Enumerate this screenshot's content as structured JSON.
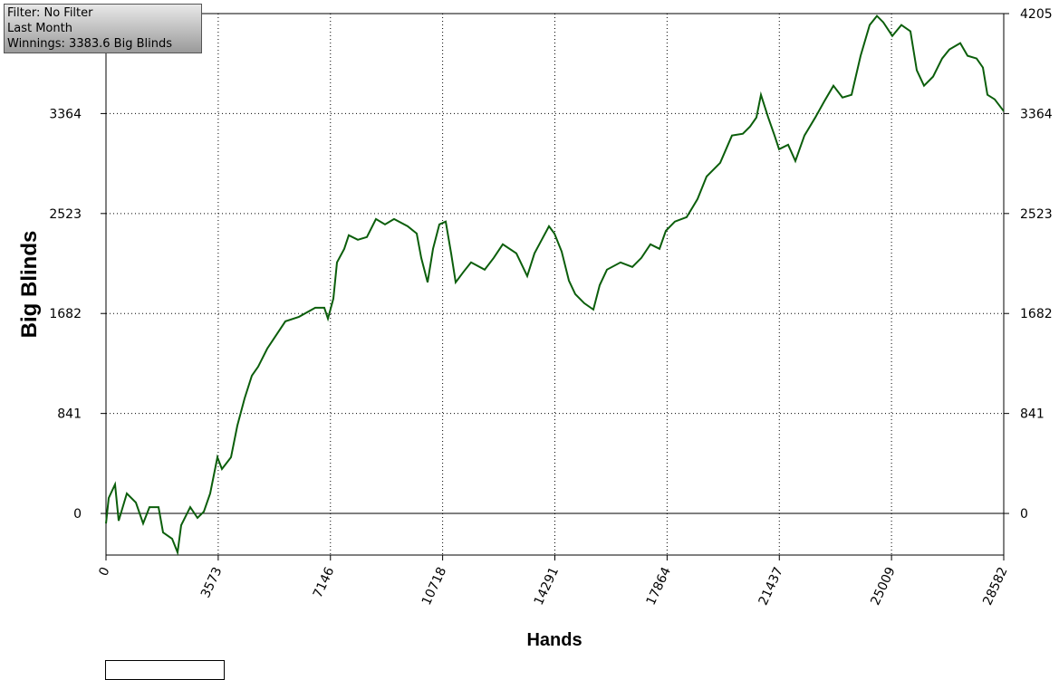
{
  "chart_data": {
    "type": "line",
    "info": [
      "Filter: No Filter",
      "Last Month",
      "Winnings: 3383.6 Big Blinds"
    ],
    "y_label": "Big Blinds",
    "x_label": "Hands",
    "xlim": [
      0,
      28582
    ],
    "xticks": [
      0,
      3573,
      7146,
      10718,
      14291,
      17864,
      21437,
      25009,
      28582
    ],
    "ylim": [
      -350,
      4205
    ],
    "yticks": [
      0,
      841,
      1682,
      2523,
      3364,
      4205
    ],
    "grid": true,
    "series": [
      {
        "name": "Winnings",
        "color": "#0b5e0b",
        "x": [
          0,
          87,
          288,
          404,
          663,
          952,
          1182,
          1384,
          1673,
          1817,
          2105,
          2278,
          2394,
          2682,
          2913,
          3115,
          3317,
          3548,
          3692,
          3980,
          4182,
          4413,
          4643,
          4845,
          5134,
          5422,
          5710,
          6143,
          6662,
          6951,
          7066,
          7239,
          7355,
          7585,
          7730,
          8018,
          8306,
          8595,
          8883,
          9172,
          9604,
          9893,
          10037,
          10239,
          10412,
          10614,
          10816,
          10989,
          11133,
          11393,
          11624,
          12056,
          12345,
          12633,
          13066,
          13412,
          13643,
          13874,
          14104,
          14277,
          14508,
          14739,
          14941,
          15229,
          15517,
          15719,
          15950,
          16382,
          16757,
          17045,
          17334,
          17622,
          17824,
          18112,
          18487,
          18833,
          19121,
          19554,
          19929,
          20275,
          20506,
          20708,
          20852,
          21083,
          21285,
          21430,
          21718,
          21949,
          22237,
          22583,
          22872,
          23160,
          23449,
          23737,
          24026,
          24314,
          24545,
          24747,
          25035,
          25323,
          25612,
          25814,
          26045,
          26333,
          26622,
          26852,
          27199,
          27430,
          27718,
          27920,
          28064,
          28295,
          28582
        ],
        "values": [
          -84,
          130,
          244,
          -61,
          168,
          91,
          -84,
          53,
          53,
          -160,
          -213,
          -328,
          -99,
          53,
          -38,
          15,
          168,
          473,
          374,
          473,
          739,
          968,
          1159,
          1235,
          1387,
          1502,
          1616,
          1654,
          1730,
          1730,
          1639,
          1807,
          2112,
          2226,
          2340,
          2302,
          2325,
          2477,
          2432,
          2477,
          2416,
          2355,
          2150,
          1944,
          2226,
          2432,
          2455,
          2188,
          1944,
          2036,
          2112,
          2051,
          2150,
          2264,
          2188,
          1997,
          2188,
          2302,
          2416,
          2355,
          2203,
          1959,
          1845,
          1768,
          1715,
          1921,
          2051,
          2112,
          2074,
          2150,
          2264,
          2226,
          2378,
          2455,
          2493,
          2645,
          2835,
          2950,
          3179,
          3194,
          3255,
          3331,
          3522,
          3331,
          3179,
          3064,
          3102,
          2965,
          3179,
          3331,
          3468,
          3598,
          3499,
          3522,
          3850,
          4109,
          4185,
          4132,
          4017,
          4109,
          4056,
          3728,
          3598,
          3675,
          3827,
          3903,
          3957,
          3850,
          3827,
          3751,
          3522,
          3484,
          3384
        ]
      }
    ]
  }
}
